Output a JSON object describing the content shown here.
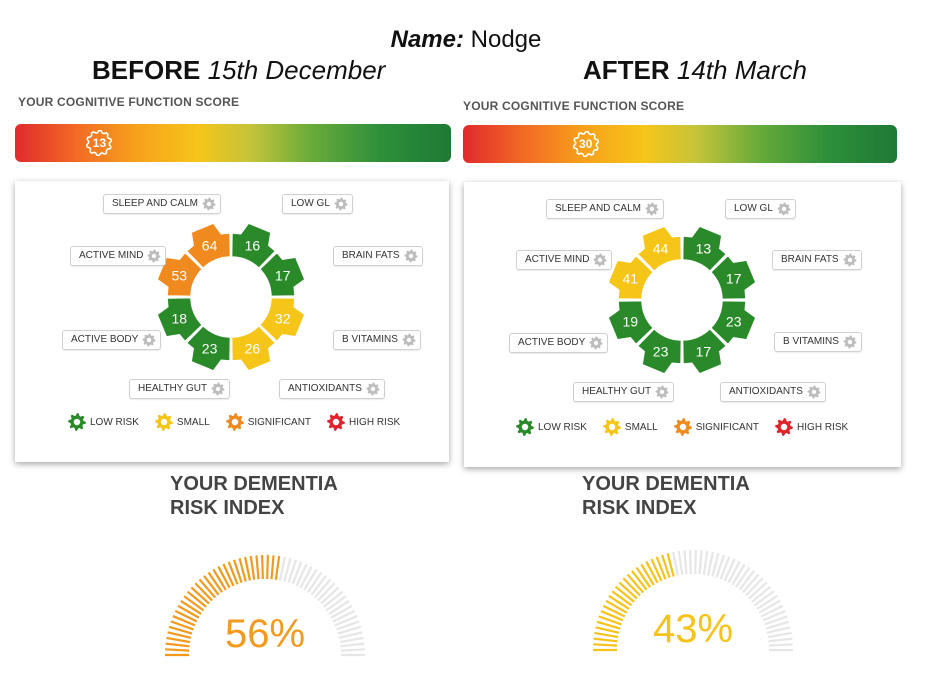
{
  "name_label": "Name:",
  "name_value": "Nodge",
  "before": {
    "heading_bold": "BEFORE",
    "heading_date": "15th December",
    "cf_label": "YOUR COGNITIVE FUNCTION SCORE",
    "score": "13",
    "score_fraction": 0.13,
    "segments": [
      "16",
      "17",
      "32",
      "26",
      "23",
      "18",
      "53",
      "64"
    ],
    "segment_colors": [
      "#2a8a2a",
      "#2a8a2a",
      "#f5c518",
      "#f5c518",
      "#2a8a2a",
      "#2a8a2a",
      "#f08a1e",
      "#f08a1e"
    ],
    "tags": [
      "SLEEP AND CALM",
      "LOW GL",
      "BRAIN FATS",
      "B VITAMINS",
      "ANTIOXIDANTS",
      "HEALTHY GUT",
      "ACTIVE BODY",
      "ACTIVE MIND"
    ],
    "dementia_title_1": "YOUR DEMENTIA",
    "dementia_title_2": "RISK INDEX",
    "dementia_value": "56%",
    "dementia_fraction": 0.56,
    "gauge_color": "#f39a1c"
  },
  "after": {
    "heading_bold": "AFTER",
    "heading_date": "14th March",
    "cf_label": "YOUR COGNITIVE FUNCTION SCORE",
    "score": "30",
    "score_fraction": 0.3,
    "segments": [
      "13",
      "17",
      "23",
      "17",
      "23",
      "19",
      "41",
      "44"
    ],
    "segment_colors": [
      "#2a8a2a",
      "#2a8a2a",
      "#2a8a2a",
      "#2a8a2a",
      "#2a8a2a",
      "#2a8a2a",
      "#f5c518",
      "#f5c518"
    ],
    "tags": [
      "SLEEP AND CALM",
      "LOW GL",
      "BRAIN FATS",
      "B VITAMINS",
      "ANTIOXIDANTS",
      "HEALTHY GUT",
      "ACTIVE BODY",
      "ACTIVE MIND"
    ],
    "dementia_title_1": "YOUR DEMENTIA",
    "dementia_title_2": "RISK INDEX",
    "dementia_value": "43%",
    "dementia_fraction": 0.43,
    "gauge_color": "#f7c21a"
  },
  "legend": [
    {
      "label": "LOW RISK",
      "color": "#2a8a2a"
    },
    {
      "label": "SMALL",
      "color": "#f5c518"
    },
    {
      "label": "SIGNIFICANT",
      "color": "#f08a1e"
    },
    {
      "label": "HIGH RISK",
      "color": "#e0242c"
    }
  ]
}
